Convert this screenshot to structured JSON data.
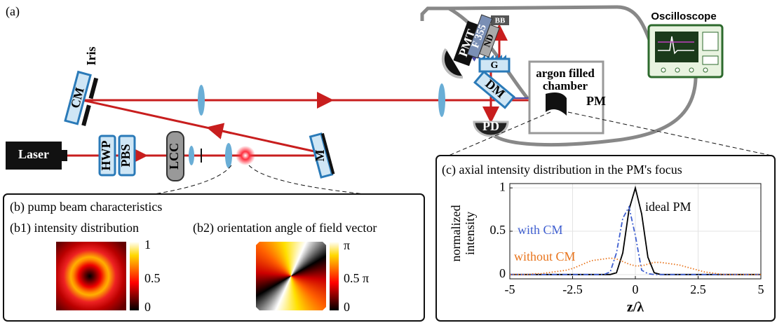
{
  "figure_label": "(a)",
  "setup": {
    "laser": "Laser",
    "hwp": "HWP",
    "pbs": "PBS",
    "lcc": "LCC",
    "mirror": "M",
    "cm": "CM",
    "iris": "Iris",
    "dm": "DM",
    "grating": "G",
    "pd": "PD",
    "pmt": "PMT",
    "filter": "F 355",
    "nd": "ND",
    "bb": "BB",
    "chamber": [
      "argon filled",
      "chamber"
    ],
    "pm": "PM",
    "oscilloscope": "Oscilloscope"
  },
  "panel_b": {
    "title": "(b)  pump beam characteristics",
    "b1": {
      "label": "(b1) intensity distribution",
      "colorbar": [
        "1",
        "0.5",
        "0"
      ]
    },
    "b2": {
      "label": "(b2) orientation angle of field vector",
      "colorbar": [
        "π",
        "0.5 π",
        "0"
      ]
    }
  },
  "chart_data": {
    "type": "line",
    "title": "(c) axial intensity distribution in the PM's focus",
    "xlabel": "z/λ",
    "ylabel": [
      "normalized",
      "intensity"
    ],
    "xlim": [
      -5,
      5
    ],
    "ylim": [
      -0.05,
      1.05
    ],
    "xticks": [
      -5,
      -2.5,
      0,
      2.5,
      5
    ],
    "yticks": [
      0,
      0.5,
      1
    ],
    "grid": true,
    "x": [
      -5,
      -4.75,
      -4.5,
      -4.25,
      -4,
      -3.75,
      -3.5,
      -3.25,
      -3,
      -2.75,
      -2.5,
      -2.25,
      -2,
      -1.75,
      -1.5,
      -1.25,
      -1,
      -0.75,
      -0.5,
      -0.25,
      0,
      0.25,
      0.5,
      0.75,
      1,
      1.25,
      1.5,
      1.75,
      2,
      2.25,
      2.5,
      2.75,
      3,
      3.25,
      3.5,
      3.75,
      4,
      4.25,
      4.5,
      4.75,
      5
    ],
    "series": [
      {
        "name": "ideal PM",
        "color": "#000000",
        "style": "solid",
        "values": [
          0,
          0,
          0,
          0,
          0,
          0,
          0,
          0,
          0,
          0,
          0,
          0,
          0,
          0,
          0,
          0,
          0,
          0.02,
          0.25,
          0.75,
          1,
          0.7,
          0.2,
          0.02,
          0,
          0,
          0,
          0,
          0,
          0,
          0,
          0,
          0,
          0,
          0,
          0,
          0,
          0,
          0,
          0,
          0
        ]
      },
      {
        "name": "with CM",
        "color": "#3f5fd0",
        "style": "dashdot",
        "values": [
          0,
          0,
          0,
          0,
          0,
          0,
          0,
          0,
          0,
          0,
          0,
          0,
          0,
          0,
          0,
          0,
          0.03,
          0.25,
          0.65,
          0.78,
          0.45,
          0.05,
          0.01,
          0,
          0,
          0,
          0,
          0,
          0,
          0,
          0,
          0,
          0,
          0,
          0,
          0,
          0,
          0,
          0,
          0,
          0
        ]
      },
      {
        "name": "without CM",
        "color": "#e8741c",
        "style": "dotted",
        "values": [
          0,
          0,
          0,
          0,
          0.01,
          0.01,
          0.02,
          0.03,
          0.04,
          0.05,
          0.07,
          0.1,
          0.13,
          0.16,
          0.17,
          0.18,
          0.19,
          0.18,
          0.15,
          0.12,
          0.1,
          0.1,
          0.12,
          0.14,
          0.14,
          0.13,
          0.12,
          0.11,
          0.09,
          0.07,
          0.05,
          0.03,
          0.02,
          0.01,
          0,
          0,
          0,
          0,
          0,
          0,
          0
        ]
      }
    ]
  }
}
